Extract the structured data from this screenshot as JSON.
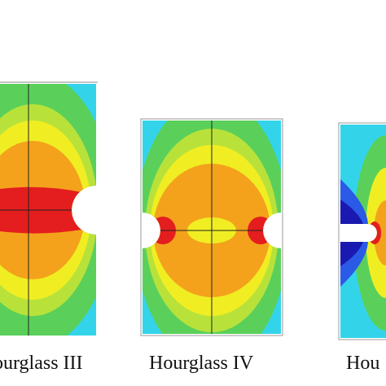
{
  "labels": [
    "ourglass III",
    "Hourglass IV",
    "Hou"
  ]
}
